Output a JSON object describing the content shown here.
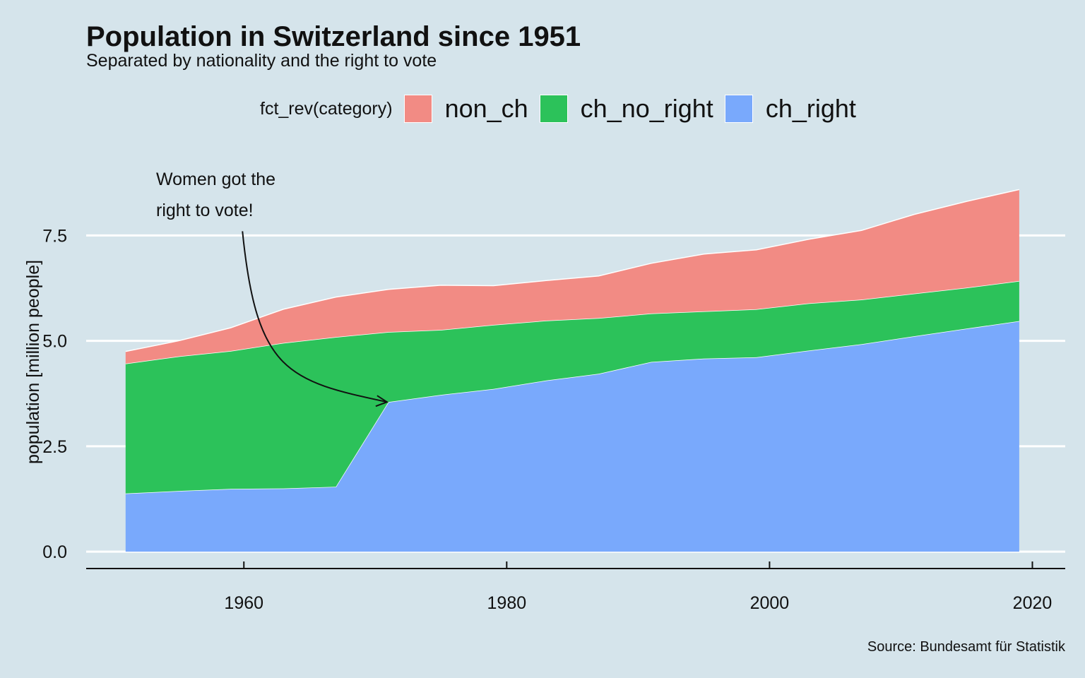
{
  "title": "Population in Switzerland since 1951",
  "subtitle": "Separated by nationality and the right to vote",
  "caption": "Source: Bundesamt für Statistik",
  "legend": {
    "title": "fct_rev(category)",
    "items": [
      {
        "label": "non_ch",
        "color": "#f28b84"
      },
      {
        "label": "ch_no_right",
        "color": "#2cc25a"
      },
      {
        "label": "ch_right",
        "color": "#79a9fc"
      }
    ]
  },
  "annotation": {
    "line1": "Women got the",
    "line2": "right to vote!",
    "arrow_from": [
      1960,
      7.6
    ],
    "arrow_to": [
      1971,
      3.55
    ]
  },
  "chart_data": {
    "type": "area",
    "stacked": true,
    "title": "Population in Switzerland since 1951",
    "subtitle": "Separated by nationality and the right to vote",
    "xlabel": "",
    "ylabel": "population [million people]",
    "xlim": [
      1948,
      2022.5
    ],
    "ylim": [
      -0.4,
      9.4
    ],
    "x_ticks": [
      1960,
      1980,
      2000,
      2020
    ],
    "y_ticks": [
      0.0,
      2.5,
      5.0,
      7.5
    ],
    "y_tick_labels": [
      "0.0",
      "2.5",
      "5.0",
      "7.5"
    ],
    "grid": "horizontal-major",
    "legend_position": "top",
    "x": [
      1951,
      1955,
      1959,
      1963,
      1967,
      1971,
      1975,
      1979,
      1983,
      1987,
      1991,
      1995,
      1999,
      2003,
      2007,
      2011,
      2015,
      2019
    ],
    "series": [
      {
        "name": "ch_right",
        "color": "#79a9fc",
        "values": [
          1.38,
          1.44,
          1.49,
          1.5,
          1.54,
          3.55,
          3.72,
          3.86,
          4.06,
          4.22,
          4.5,
          4.58,
          4.61,
          4.77,
          4.92,
          5.11,
          5.29,
          5.47
        ]
      },
      {
        "name": "ch_no_right",
        "color": "#2cc25a",
        "values": [
          3.08,
          3.19,
          3.27,
          3.45,
          3.55,
          1.66,
          1.54,
          1.52,
          1.42,
          1.32,
          1.15,
          1.12,
          1.14,
          1.12,
          1.06,
          1.01,
          0.97,
          0.95
        ]
      },
      {
        "name": "non_ch",
        "color": "#f28b84",
        "values": [
          0.29,
          0.37,
          0.55,
          0.8,
          0.95,
          1.01,
          1.06,
          0.93,
          0.95,
          1.0,
          1.19,
          1.36,
          1.41,
          1.52,
          1.64,
          1.88,
          2.05,
          2.17
        ]
      }
    ]
  }
}
